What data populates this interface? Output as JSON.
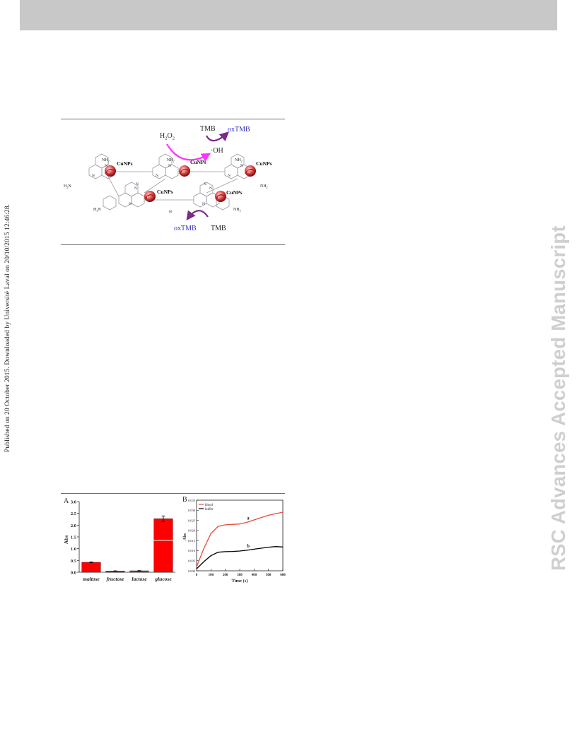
{
  "header": {
    "bar_color": "#c8c8c8"
  },
  "side_notice": "Published on 20 October 2015. Downloaded by Université Laval on 20/10/2015 12:46:28.",
  "watermark": "RSC Advances Accepted Manuscript",
  "scheme": {
    "h2o2": "H",
    "h2o2_sub1": "2",
    "h2o2_o": "O",
    "h2o2_sub2": "2",
    "hydroxyl": "·OH",
    "tmb_top": "TMB",
    "oxtmb_top": "oxTMB",
    "tmb_bottom": "TMB",
    "oxtmb_bottom": "oxTMB",
    "cunps_label": "CuNPs",
    "nh2": "NH",
    "nh2_sub": "2",
    "h2n": "H",
    "h2n_sub": "2",
    "h2n_n": "N",
    "ring_n": "N",
    "bridge_h": "H",
    "particle_letter": "C",
    "colors": {
      "h2o2_arrow": "#ff33ff",
      "tmb_arrow": "#7a2a8a",
      "oxtmb_text": "#3333cc",
      "particle": "#cc2222"
    }
  },
  "figure": {
    "panelA": {
      "label": "A",
      "chart_data": {
        "type": "bar",
        "categories": [
          "maltose",
          "fructose",
          "lactose",
          "glucose"
        ],
        "values": [
          0.42,
          0.05,
          0.06,
          2.27
        ],
        "errors": [
          0.02,
          0.01,
          0.01,
          0.12
        ],
        "ylabel": "Abs",
        "ylim": [
          0,
          3.0
        ],
        "yticks": [
          "0.0",
          "0.5",
          "1.0",
          "1.5",
          "2.0",
          "2.5",
          "3.0"
        ],
        "bar_color": "#ff0000"
      }
    },
    "panelB": {
      "label": "B",
      "chart_data": {
        "type": "line",
        "xlabel": "Time (s)",
        "ylabel": "Abs",
        "xlim": [
          0,
          600
        ],
        "ylim": [
          0.0,
          0.035
        ],
        "xticks": [
          "0",
          "100",
          "200",
          "300",
          "400",
          "500",
          "600"
        ],
        "yticks": [
          "0.000",
          "0.005",
          "0.010",
          "0.015",
          "0.020",
          "0.025",
          "0.030",
          "0.035"
        ],
        "legend": [
          "blood",
          "buffer"
        ],
        "series": [
          {
            "name": "blood",
            "marker": "a",
            "color": "#e84a3a",
            "x": [
              0,
              50,
              100,
              150,
              200,
              250,
              300,
              350,
              400,
              450,
              500,
              550,
              600
            ],
            "values": [
              0.002,
              0.011,
              0.0185,
              0.022,
              0.0228,
              0.023,
              0.0232,
              0.024,
              0.0252,
              0.0264,
              0.0275,
              0.0283,
              0.029
            ]
          },
          {
            "name": "buffer",
            "marker": "b",
            "color": "#000000",
            "x": [
              0,
              50,
              100,
              150,
              200,
              250,
              300,
              350,
              400,
              450,
              500,
              550,
              600
            ],
            "values": [
              0.001,
              0.0045,
              0.0075,
              0.0092,
              0.0095,
              0.0096,
              0.0098,
              0.0102,
              0.0107,
              0.0112,
              0.0117,
              0.012,
              0.0118
            ]
          }
        ]
      }
    }
  }
}
